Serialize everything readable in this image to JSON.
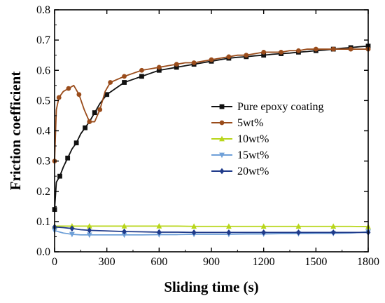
{
  "chart_data": {
    "type": "line",
    "xlabel": "Sliding time (s)",
    "ylabel": "Friction coefficient",
    "xlim": [
      0,
      1800
    ],
    "ylim": [
      0.0,
      0.8
    ],
    "xticks": [
      0,
      300,
      600,
      900,
      1200,
      1500,
      1800
    ],
    "yticks": [
      0.0,
      0.1,
      0.2,
      0.3,
      0.4,
      0.5,
      0.6,
      0.7,
      0.8
    ],
    "xtick_labels": [
      "0",
      "300",
      "600",
      "900",
      "1200",
      "1500",
      "1800"
    ],
    "ytick_labels": [
      "0.0",
      "0.1",
      "0.2",
      "0.3",
      "0.4",
      "0.5",
      "0.6",
      "0.7",
      "0.8"
    ],
    "grid": false,
    "legend_position": "center-right",
    "series": [
      {
        "name": "Pure epoxy coating",
        "color": "#111111",
        "marker": "square",
        "x": [
          0,
          10,
          30,
          50,
          75,
          100,
          125,
          150,
          175,
          200,
          230,
          260,
          300,
          350,
          400,
          450,
          500,
          550,
          600,
          650,
          700,
          750,
          800,
          850,
          900,
          950,
          1000,
          1050,
          1100,
          1150,
          1200,
          1250,
          1300,
          1350,
          1400,
          1450,
          1500,
          1550,
          1600,
          1650,
          1700,
          1750,
          1800
        ],
        "y": [
          0.14,
          0.23,
          0.25,
          0.28,
          0.31,
          0.34,
          0.36,
          0.39,
          0.41,
          0.43,
          0.46,
          0.49,
          0.52,
          0.54,
          0.56,
          0.57,
          0.58,
          0.59,
          0.6,
          0.605,
          0.61,
          0.615,
          0.62,
          0.625,
          0.63,
          0.635,
          0.64,
          0.643,
          0.645,
          0.648,
          0.65,
          0.653,
          0.655,
          0.657,
          0.66,
          0.662,
          0.665,
          0.667,
          0.67,
          0.673,
          0.675,
          0.678,
          0.68
        ]
      },
      {
        "name": "5wt%",
        "color": "#9a4c1b",
        "marker": "circle",
        "x": [
          0,
          10,
          25,
          50,
          80,
          110,
          140,
          170,
          200,
          230,
          260,
          290,
          320,
          360,
          400,
          450,
          500,
          550,
          600,
          650,
          700,
          750,
          800,
          850,
          900,
          950,
          1000,
          1050,
          1100,
          1150,
          1200,
          1250,
          1300,
          1350,
          1400,
          1450,
          1500,
          1550,
          1600,
          1650,
          1700,
          1750,
          1800
        ],
        "y": [
          0.3,
          0.47,
          0.51,
          0.53,
          0.54,
          0.55,
          0.52,
          0.47,
          0.43,
          0.43,
          0.47,
          0.53,
          0.56,
          0.57,
          0.58,
          0.59,
          0.6,
          0.605,
          0.61,
          0.615,
          0.62,
          0.625,
          0.625,
          0.63,
          0.635,
          0.64,
          0.645,
          0.65,
          0.65,
          0.655,
          0.66,
          0.66,
          0.66,
          0.665,
          0.665,
          0.67,
          0.67,
          0.67,
          0.67,
          0.67,
          0.67,
          0.67,
          0.67
        ]
      },
      {
        "name": "10wt%",
        "color": "#b8d61a",
        "marker": "triangle",
        "x": [
          0,
          50,
          100,
          150,
          200,
          300,
          400,
          500,
          600,
          700,
          800,
          900,
          1000,
          1100,
          1200,
          1300,
          1400,
          1500,
          1600,
          1700,
          1800
        ],
        "y": [
          0.085,
          0.085,
          0.085,
          0.085,
          0.085,
          0.085,
          0.085,
          0.085,
          0.085,
          0.085,
          0.084,
          0.084,
          0.084,
          0.084,
          0.084,
          0.084,
          0.084,
          0.084,
          0.084,
          0.084,
          0.083
        ]
      },
      {
        "name": "15wt%",
        "color": "#6fa0d8",
        "marker": "triangle-down",
        "x": [
          0,
          50,
          100,
          150,
          200,
          300,
          400,
          500,
          600,
          700,
          800,
          900,
          1000,
          1100,
          1200,
          1300,
          1400,
          1500,
          1600,
          1700,
          1800
        ],
        "y": [
          0.07,
          0.062,
          0.058,
          0.056,
          0.056,
          0.056,
          0.056,
          0.056,
          0.057,
          0.057,
          0.058,
          0.058,
          0.058,
          0.059,
          0.059,
          0.06,
          0.06,
          0.061,
          0.061,
          0.062,
          0.066
        ]
      },
      {
        "name": "20wt%",
        "color": "#1f3a8a",
        "marker": "diamond",
        "x": [
          0,
          50,
          100,
          150,
          200,
          300,
          400,
          500,
          600,
          700,
          800,
          900,
          1000,
          1100,
          1200,
          1300,
          1400,
          1500,
          1600,
          1700,
          1800
        ],
        "y": [
          0.082,
          0.08,
          0.077,
          0.073,
          0.071,
          0.069,
          0.067,
          0.066,
          0.065,
          0.065,
          0.064,
          0.064,
          0.064,
          0.064,
          0.064,
          0.064,
          0.064,
          0.064,
          0.064,
          0.064,
          0.064
        ]
      }
    ]
  }
}
